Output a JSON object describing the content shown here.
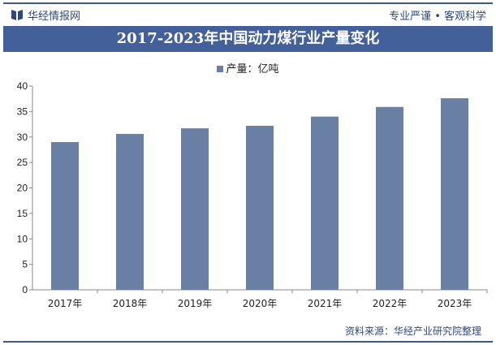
{
  "header": {
    "brand": "华经情报网",
    "slogan": "专业严谨 • 客观科学",
    "logo_icon": "book-icon"
  },
  "source": "资料来源：华经产业研究院整理",
  "colors": {
    "bar": "#697fa3",
    "title_bg": "#44609a"
  },
  "chart_data": {
    "type": "bar",
    "title": "2017-2023年中国动力煤行业产量变化",
    "categories": [
      "2017年",
      "2018年",
      "2019年",
      "2020年",
      "2021年",
      "2022年",
      "2023年"
    ],
    "series": [
      {
        "name": "产量：亿吨",
        "values": [
          29.0,
          30.6,
          31.7,
          32.2,
          34.0,
          35.9,
          37.6
        ]
      }
    ],
    "ylim": [
      0,
      40
    ],
    "yticks": [
      "0",
      "5",
      "10",
      "15",
      "20",
      "25",
      "30",
      "35",
      "40"
    ],
    "grid": false,
    "legend": "top"
  }
}
